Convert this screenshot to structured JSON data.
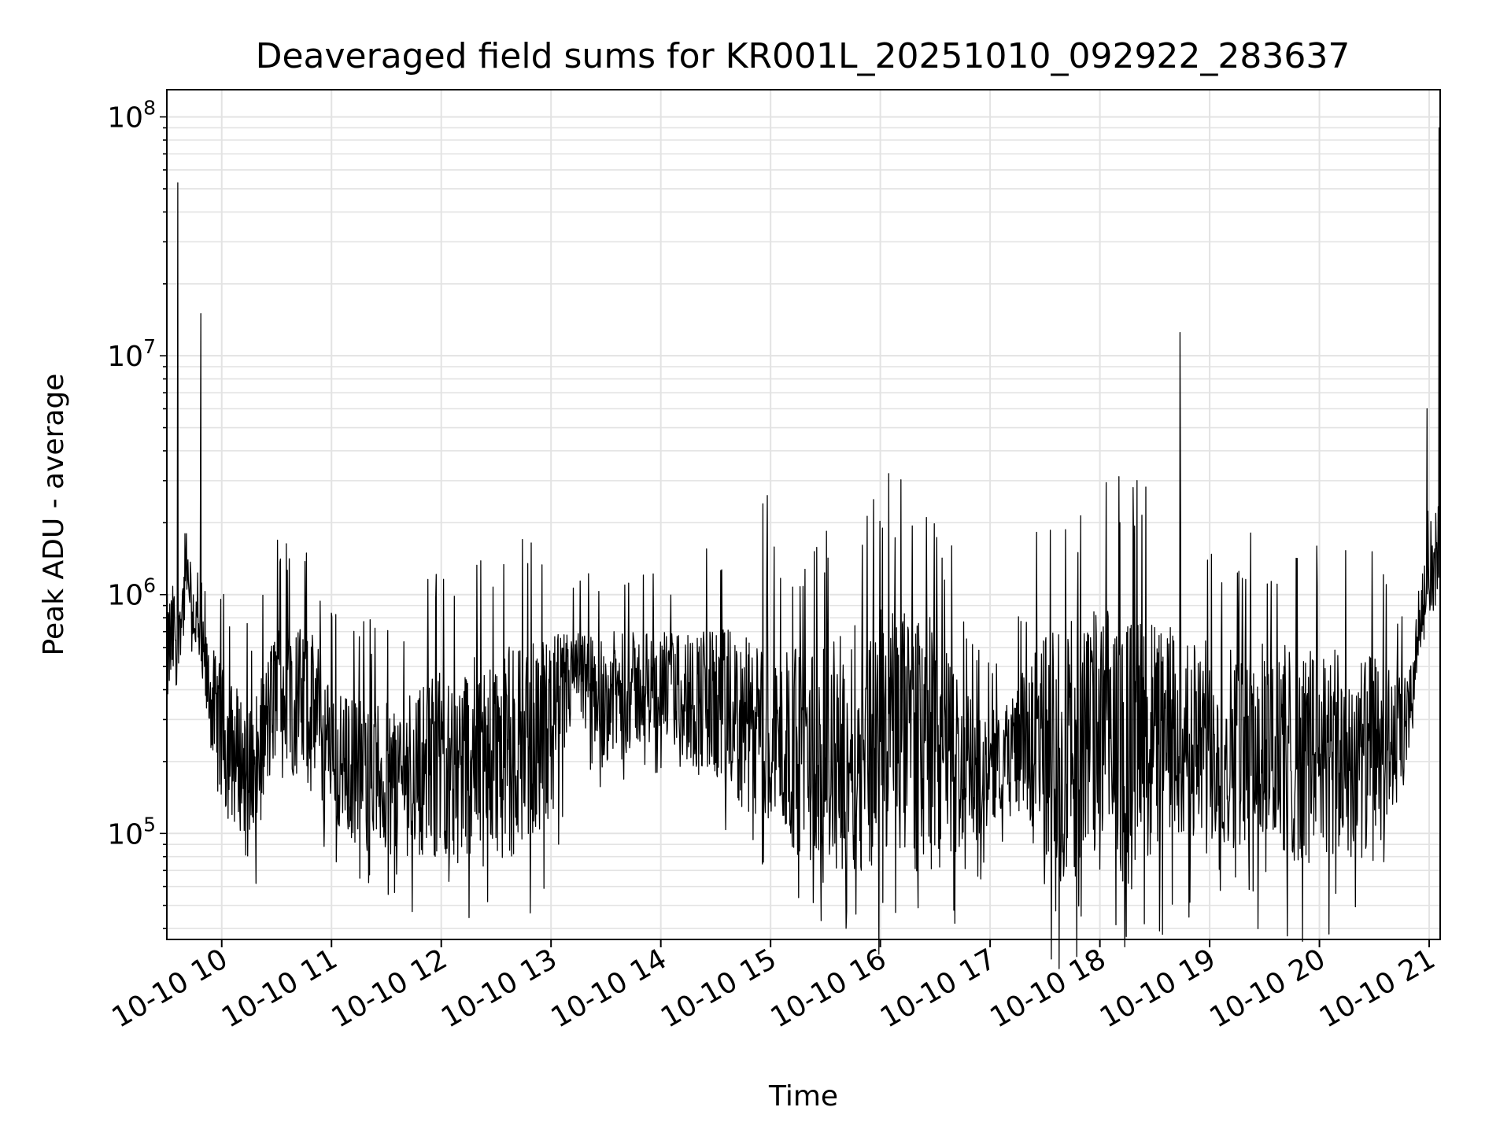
{
  "chart_data": {
    "type": "line",
    "title": "Deaveraged field sums for KR001L_20251010_092922_283637",
    "xlabel": "Time",
    "ylabel": "Peak ADU - average",
    "yscale": "log",
    "ylim": [
      36000,
      130000000
    ],
    "xlim_hours": [
      9.5,
      21.1
    ],
    "grid": true,
    "line_color": "#000000",
    "x_ticks": [
      {
        "hour": 10,
        "label": "10-10 10"
      },
      {
        "hour": 11,
        "label": "10-10 11"
      },
      {
        "hour": 12,
        "label": "10-10 12"
      },
      {
        "hour": 13,
        "label": "10-10 13"
      },
      {
        "hour": 14,
        "label": "10-10 14"
      },
      {
        "hour": 15,
        "label": "10-10 15"
      },
      {
        "hour": 16,
        "label": "10-10 16"
      },
      {
        "hour": 17,
        "label": "10-10 17"
      },
      {
        "hour": 18,
        "label": "10-10 18"
      },
      {
        "hour": 19,
        "label": "10-10 19"
      },
      {
        "hour": 20,
        "label": "10-10 20"
      },
      {
        "hour": 21,
        "label": "10-10 21"
      }
    ],
    "y_ticks": [
      {
        "value": 100000,
        "base": "10",
        "exp": "5"
      },
      {
        "value": 1000000,
        "base": "10",
        "exp": "6"
      },
      {
        "value": 10000000,
        "base": "10",
        "exp": "7"
      },
      {
        "value": 100000000,
        "base": "10",
        "exp": "8"
      }
    ],
    "envelope": [
      {
        "hour": 9.5,
        "low": 300000,
        "high": 1000000
      },
      {
        "hour": 9.7,
        "low": 800000,
        "high": 1500000
      },
      {
        "hour": 9.85,
        "low": 300000,
        "high": 700000
      },
      {
        "hour": 10.0,
        "low": 120000,
        "high": 500000
      },
      {
        "hour": 10.3,
        "low": 90000,
        "high": 350000
      },
      {
        "hour": 10.5,
        "low": 200000,
        "high": 800000
      },
      {
        "hour": 10.85,
        "low": 150000,
        "high": 700000
      },
      {
        "hour": 11.0,
        "low": 100000,
        "high": 400000
      },
      {
        "hour": 11.5,
        "low": 80000,
        "high": 350000
      },
      {
        "hour": 12.0,
        "low": 80000,
        "high": 500000
      },
      {
        "hour": 12.5,
        "low": 80000,
        "high": 600000
      },
      {
        "hour": 13.0,
        "low": 100000,
        "high": 700000
      },
      {
        "hour": 13.2,
        "low": 300000,
        "high": 700000
      },
      {
        "hour": 13.5,
        "low": 200000,
        "high": 700000
      },
      {
        "hour": 14.0,
        "low": 250000,
        "high": 700000
      },
      {
        "hour": 14.5,
        "low": 150000,
        "high": 750000
      },
      {
        "hour": 15.0,
        "low": 100000,
        "high": 600000
      },
      {
        "hour": 15.5,
        "low": 70000,
        "high": 600000
      },
      {
        "hour": 16.0,
        "low": 70000,
        "high": 900000
      },
      {
        "hour": 16.5,
        "low": 70000,
        "high": 800000
      },
      {
        "hour": 16.9,
        "low": 90000,
        "high": 300000
      },
      {
        "hour": 17.2,
        "low": 150000,
        "high": 400000
      },
      {
        "hour": 17.5,
        "low": 60000,
        "high": 700000
      },
      {
        "hour": 18.0,
        "low": 70000,
        "high": 900000
      },
      {
        "hour": 18.5,
        "low": 80000,
        "high": 800000
      },
      {
        "hour": 19.0,
        "low": 90000,
        "high": 650000
      },
      {
        "hour": 19.5,
        "low": 80000,
        "high": 650000
      },
      {
        "hour": 20.0,
        "low": 70000,
        "high": 600000
      },
      {
        "hour": 20.5,
        "low": 80000,
        "high": 550000
      },
      {
        "hour": 20.8,
        "low": 150000,
        "high": 450000
      },
      {
        "hour": 20.95,
        "low": 800000,
        "high": 1500000
      },
      {
        "hour": 21.1,
        "low": 900000,
        "high": 1800000
      }
    ],
    "spikes": [
      {
        "hour": 9.6,
        "value": 53000000
      },
      {
        "hour": 9.81,
        "value": 15000000
      },
      {
        "hour": 14.93,
        "value": 2400000
      },
      {
        "hour": 14.97,
        "value": 2600000
      },
      {
        "hour": 16.02,
        "value": 1900000
      },
      {
        "hour": 16.65,
        "value": 1600000
      },
      {
        "hour": 17.8,
        "value": 1500000
      },
      {
        "hour": 18.73,
        "value": 12500000
      },
      {
        "hour": 20.98,
        "value": 6000000
      },
      {
        "hour": 21.09,
        "value": 90000000
      }
    ]
  }
}
